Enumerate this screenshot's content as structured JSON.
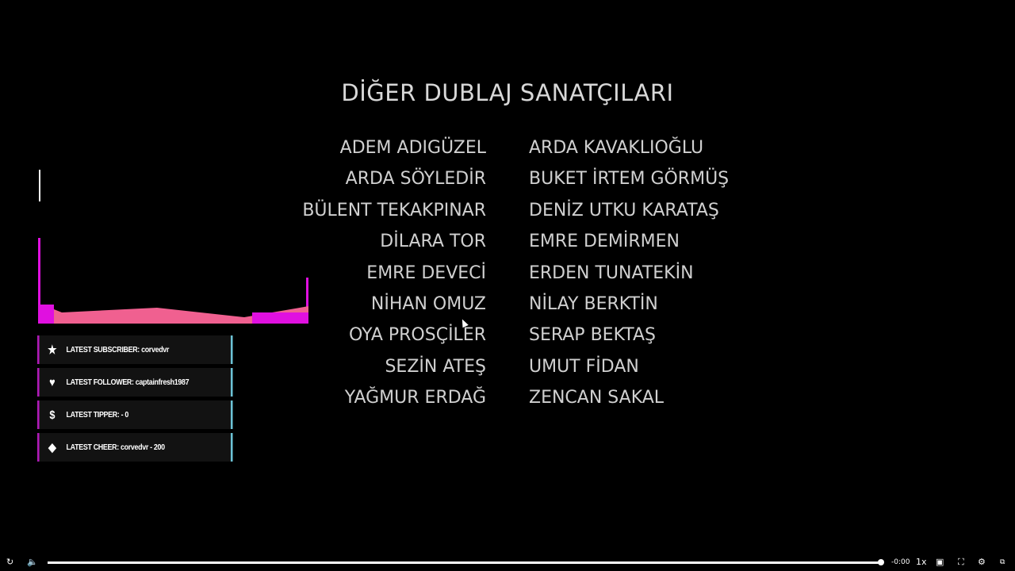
{
  "credits": {
    "title": "DİĞER DUBLAJ SANATÇILARI",
    "left": [
      "ADEM ADIGÜZEL",
      "ARDA SÖYLEDİR",
      "BÜLENT TEKAKPINAR",
      "DİLARA TOR",
      "EMRE DEVECİ",
      "NİHAN OMUZ",
      "OYA PROSÇİLER",
      "SEZİN ATEŞ",
      "YAĞMUR ERDAĞ"
    ],
    "right": [
      "ARDA KAVAKLIOĞLU",
      "BUKET İRTEM GÖRMÜŞ",
      "DENİZ UTKU KARATAŞ",
      "EMRE DEMİRMEN",
      "ERDEN TUNATEKİN",
      "NİLAY BERKTİN",
      "SERAP BEKTAŞ",
      "UMUT FİDAN",
      "ZENCAN SAKAL"
    ]
  },
  "overlay": {
    "panels": [
      {
        "icon": "star-icon",
        "text": "LATEST SUBSCRIBER: corvedvr"
      },
      {
        "icon": "heart-icon",
        "text": "LATEST FOLLOWER: captainfresh1987"
      },
      {
        "icon": "dollar-icon",
        "text": "LATEST TIPPER:  - 0"
      },
      {
        "icon": "diamond-icon",
        "text": "LATEST CHEER: corvedvr - 200"
      }
    ],
    "colors": {
      "magenta": "#e010e0",
      "pink": "#f06090",
      "cyan": "#6cc3d6"
    }
  },
  "player": {
    "time": "-0:00",
    "speed": "1x",
    "progress": 0.995
  }
}
